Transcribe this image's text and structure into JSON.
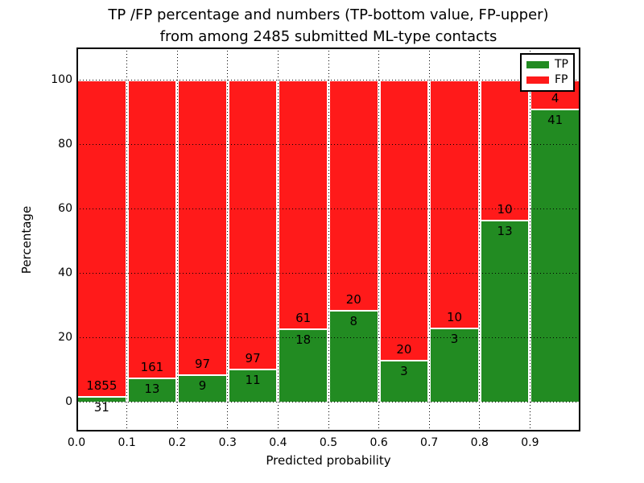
{
  "title": {
    "line1": "TP /FP percentage and numbers (TP-bottom value, FP-upper)",
    "line2": "from among 2485 submitted ML-type contacts"
  },
  "axes": {
    "xlabel": "Predicted probability",
    "ylabel": "Percentage",
    "xticks": [
      "0.0",
      "0.1",
      "0.2",
      "0.3",
      "0.4",
      "0.5",
      "0.6",
      "0.7",
      "0.8",
      "0.9"
    ],
    "yticks": [
      0,
      20,
      40,
      60,
      80,
      100
    ]
  },
  "legend": {
    "position": "upper right",
    "entries": [
      {
        "label": "TP",
        "color": "#228B22"
      },
      {
        "label": "FP",
        "color": "#FF1A1A"
      }
    ]
  },
  "colors": {
    "tp": "#228B22",
    "fp": "#FF1A1A",
    "bar_edge": "#FFFFFF",
    "grid": "#000000",
    "background": "#FFFFFF"
  },
  "chart_data": {
    "type": "bar",
    "stacked": true,
    "title": "TP /FP percentage and numbers (TP-bottom value, FP-upper)\nfrom among 2485 submitted ML-type contacts",
    "xlabel": "Predicted probability",
    "ylabel": "Percentage",
    "total_contacts": 2485,
    "categories": [
      "0.0-0.1",
      "0.1-0.2",
      "0.2-0.3",
      "0.3-0.4",
      "0.4-0.5",
      "0.5-0.6",
      "0.6-0.7",
      "0.7-0.8",
      "0.8-0.9",
      "0.9-1.0"
    ],
    "series": [
      {
        "name": "TP",
        "color": "#228B22",
        "counts": [
          31,
          13,
          9,
          11,
          18,
          8,
          3,
          3,
          13,
          41
        ],
        "percent": [
          1.64,
          7.47,
          8.49,
          10.19,
          22.78,
          28.57,
          13.04,
          23.08,
          56.52,
          91.11
        ]
      },
      {
        "name": "FP",
        "color": "#FF1A1A",
        "counts": [
          1855,
          161,
          97,
          97,
          61,
          20,
          20,
          10,
          10,
          4
        ],
        "percent": [
          98.36,
          92.53,
          91.51,
          89.81,
          77.22,
          71.43,
          86.96,
          76.92,
          43.48,
          8.89
        ]
      }
    ],
    "xlim": [
      0.0,
      1.0
    ],
    "ylim": [
      -9.25,
      110
    ],
    "yticks": [
      0,
      20,
      40,
      60,
      80,
      100
    ],
    "xticks": [
      "0.0",
      "0.1",
      "0.2",
      "0.3",
      "0.4",
      "0.5",
      "0.6",
      "0.7",
      "0.8",
      "0.9"
    ],
    "grid": true,
    "legend_position": "upper right"
  }
}
